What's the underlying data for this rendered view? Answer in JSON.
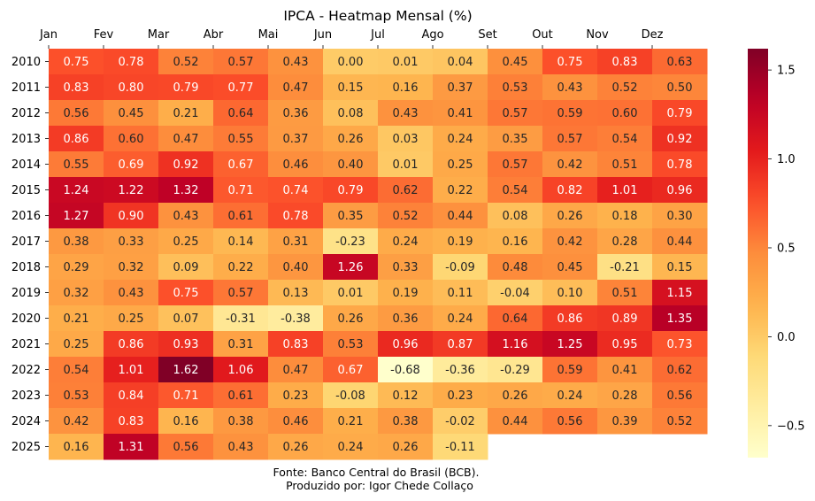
{
  "chart_data": {
    "type": "heatmap",
    "title": "IPCA - Heatmap Mensal (%)",
    "x_labels": [
      "Jan",
      "Fev",
      "Mar",
      "Abr",
      "Mai",
      "Jun",
      "Jul",
      "Ago",
      "Set",
      "Out",
      "Nov",
      "Dez"
    ],
    "y_labels": [
      "2010",
      "2011",
      "2012",
      "2013",
      "2014",
      "2015",
      "2016",
      "2017",
      "2018",
      "2019",
      "2020",
      "2021",
      "2022",
      "2023",
      "2024",
      "2025"
    ],
    "values": [
      [
        0.75,
        0.78,
        0.52,
        0.57,
        0.43,
        0.0,
        0.01,
        0.04,
        0.45,
        0.75,
        0.83,
        0.63
      ],
      [
        0.83,
        0.8,
        0.79,
        0.77,
        0.47,
        0.15,
        0.16,
        0.37,
        0.53,
        0.43,
        0.52,
        0.5
      ],
      [
        0.56,
        0.45,
        0.21,
        0.64,
        0.36,
        0.08,
        0.43,
        0.41,
        0.57,
        0.59,
        0.6,
        0.79
      ],
      [
        0.86,
        0.6,
        0.47,
        0.55,
        0.37,
        0.26,
        0.03,
        0.24,
        0.35,
        0.57,
        0.54,
        0.92
      ],
      [
        0.55,
        0.69,
        0.92,
        0.67,
        0.46,
        0.4,
        0.01,
        0.25,
        0.57,
        0.42,
        0.51,
        0.78
      ],
      [
        1.24,
        1.22,
        1.32,
        0.71,
        0.74,
        0.79,
        0.62,
        0.22,
        0.54,
        0.82,
        1.01,
        0.96
      ],
      [
        1.27,
        0.9,
        0.43,
        0.61,
        0.78,
        0.35,
        0.52,
        0.44,
        0.08,
        0.26,
        0.18,
        0.3
      ],
      [
        0.38,
        0.33,
        0.25,
        0.14,
        0.31,
        -0.23,
        0.24,
        0.19,
        0.16,
        0.42,
        0.28,
        0.44
      ],
      [
        0.29,
        0.32,
        0.09,
        0.22,
        0.4,
        1.26,
        0.33,
        -0.09,
        0.48,
        0.45,
        -0.21,
        0.15
      ],
      [
        0.32,
        0.43,
        0.75,
        0.57,
        0.13,
        0.01,
        0.19,
        0.11,
        -0.04,
        0.1,
        0.51,
        1.15
      ],
      [
        0.21,
        0.25,
        0.07,
        -0.31,
        -0.38,
        0.26,
        0.36,
        0.24,
        0.64,
        0.86,
        0.89,
        1.35
      ],
      [
        0.25,
        0.86,
        0.93,
        0.31,
        0.83,
        0.53,
        0.96,
        0.87,
        1.16,
        1.25,
        0.95,
        0.73
      ],
      [
        0.54,
        1.01,
        1.62,
        1.06,
        0.47,
        0.67,
        -0.68,
        -0.36,
        -0.29,
        0.59,
        0.41,
        0.62
      ],
      [
        0.53,
        0.84,
        0.71,
        0.61,
        0.23,
        -0.08,
        0.12,
        0.23,
        0.26,
        0.24,
        0.28,
        0.56
      ],
      [
        0.42,
        0.83,
        0.16,
        0.38,
        0.46,
        0.21,
        0.38,
        -0.02,
        0.44,
        0.56,
        0.39,
        0.52
      ],
      [
        0.16,
        1.31,
        0.56,
        0.43,
        0.26,
        0.24,
        0.26,
        -0.11,
        null,
        null,
        null,
        null
      ]
    ],
    "value_format": "2 decimals",
    "colormap": "YlOrRd",
    "vmin": -0.68,
    "vmax": 1.62,
    "colorbar_ticks": [
      -0.5,
      0.0,
      0.5,
      1.0,
      1.5
    ],
    "colorbar_tick_labels": [
      "−0.5",
      "0.0",
      "0.5",
      "1.0",
      "1.5"
    ],
    "x_axis_position": "top",
    "grid": false
  },
  "footer": {
    "line1": "Fonte: Banco Central do Brasil (BCB).",
    "line2": "Produzido por: Igor Chede Collaço"
  },
  "colors": {
    "stop_0": "#ffffcc",
    "stop_1": "#ffeda0",
    "stop_2": "#fed976",
    "stop_3": "#feb24c",
    "stop_4": "#fd8d3c",
    "stop_5": "#fc4e2a",
    "stop_6": "#e31a1c",
    "stop_7": "#bd0026",
    "stop_8": "#800026"
  }
}
